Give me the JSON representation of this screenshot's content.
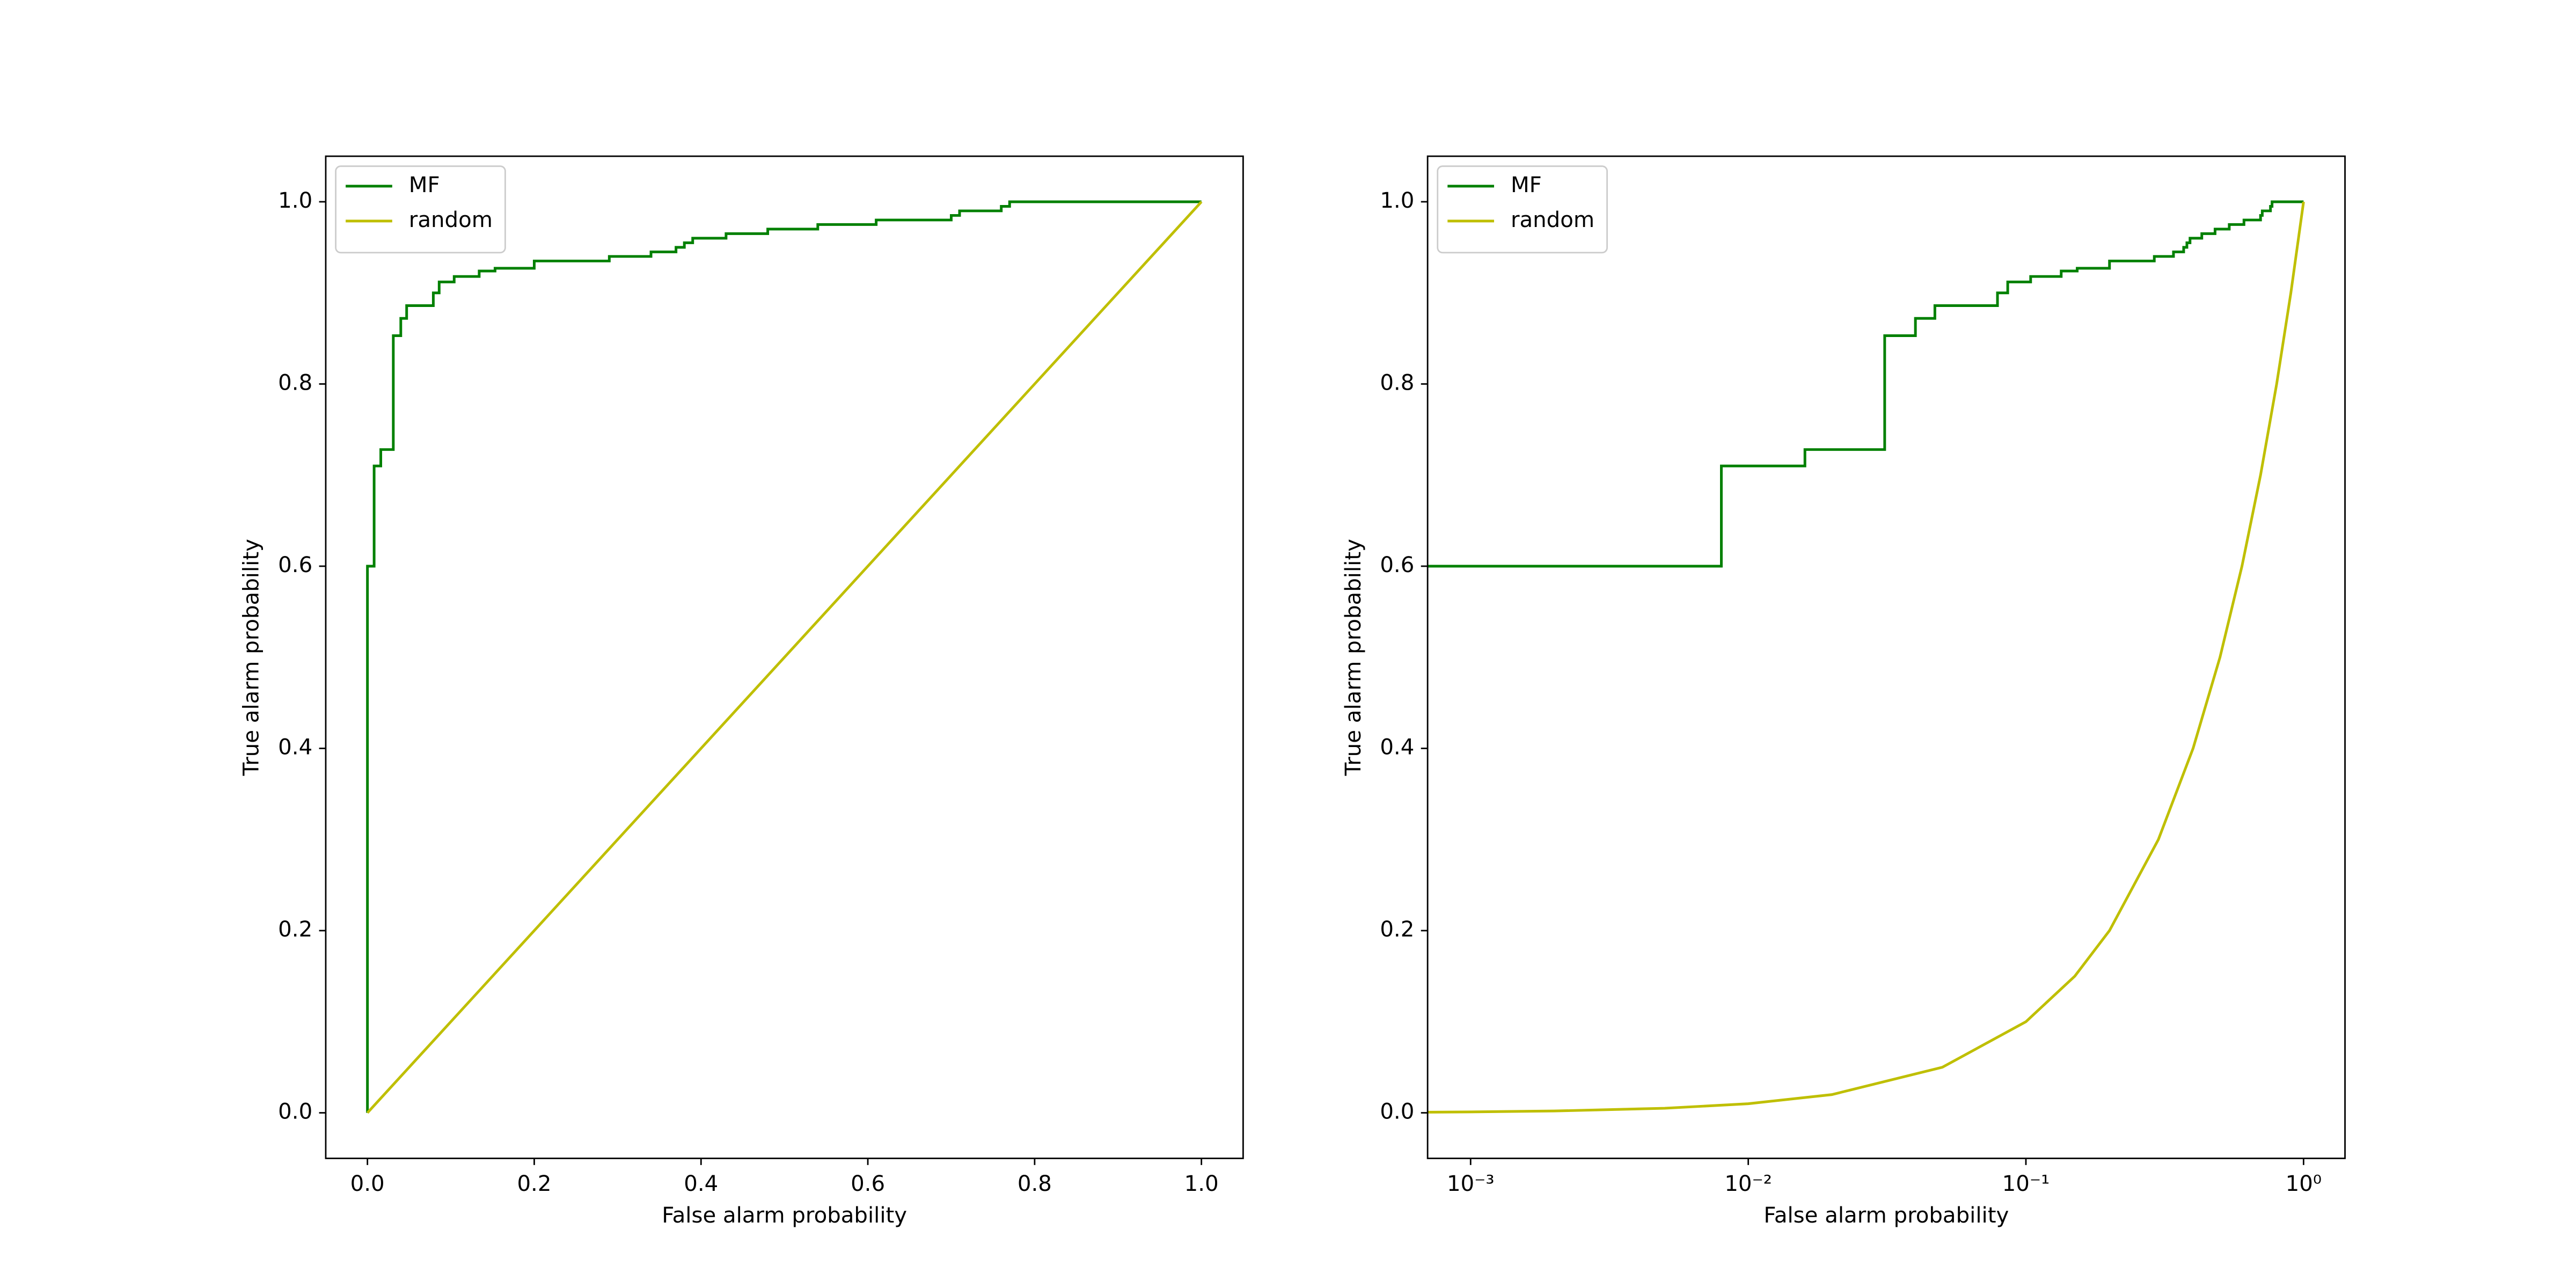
{
  "chart_data": [
    {
      "type": "line",
      "xlabel": "False alarm probability",
      "ylabel": "True alarm probability",
      "xscale": "linear",
      "xlim": [
        -0.05,
        1.05
      ],
      "ylim": [
        -0.05,
        1.05
      ],
      "xticks": [
        {
          "value": 0,
          "label": "0.0"
        },
        {
          "value": 0.2,
          "label": "0.2"
        },
        {
          "value": 0.4,
          "label": "0.4"
        },
        {
          "value": 0.6,
          "label": "0.6"
        },
        {
          "value": 0.8,
          "label": "0.8"
        },
        {
          "value": 1,
          "label": "1.0"
        }
      ],
      "yticks": [
        {
          "value": 0,
          "label": "0.0"
        },
        {
          "value": 0.2,
          "label": "0.2"
        },
        {
          "value": 0.4,
          "label": "0.4"
        },
        {
          "value": 0.6,
          "label": "0.6"
        },
        {
          "value": 0.8,
          "label": "0.8"
        },
        {
          "value": 1,
          "label": "1.0"
        }
      ],
      "legend": "upper left",
      "series": [
        {
          "name": "MF",
          "color": "#008000",
          "x": [
            0,
            0,
            0.008,
            0.008,
            0.016,
            0.016,
            0.031,
            0.031,
            0.04,
            0.04,
            0.047,
            0.047,
            0.079,
            0.079,
            0.086,
            0.086,
            0.104,
            0.104,
            0.134,
            0.134,
            0.153,
            0.153,
            0.2,
            0.2,
            0.29,
            0.29,
            0.34,
            0.34,
            0.37,
            0.37,
            0.38,
            0.38,
            0.39,
            0.39,
            0.43,
            0.43,
            0.48,
            0.48,
            0.54,
            0.54,
            0.61,
            0.61,
            0.7,
            0.7,
            0.71,
            0.71,
            0.76,
            0.76,
            0.77,
            0.77,
            1
          ],
          "values": [
            0,
            0.6,
            0.6,
            0.71,
            0.71,
            0.728,
            0.728,
            0.853,
            0.853,
            0.872,
            0.872,
            0.886,
            0.886,
            0.9,
            0.9,
            0.912,
            0.912,
            0.918,
            0.918,
            0.924,
            0.924,
            0.927,
            0.927,
            0.935,
            0.935,
            0.94,
            0.94,
            0.945,
            0.945,
            0.95,
            0.95,
            0.955,
            0.955,
            0.96,
            0.96,
            0.965,
            0.965,
            0.97,
            0.97,
            0.975,
            0.975,
            0.98,
            0.98,
            0.985,
            0.985,
            0.99,
            0.99,
            0.995,
            0.995,
            1,
            1
          ]
        },
        {
          "name": "random",
          "color": "#bfbf00",
          "x": [
            0,
            1
          ],
          "values": [
            0,
            1
          ]
        }
      ]
    },
    {
      "type": "line",
      "xlabel": "False alarm probability",
      "ylabel": "True alarm probability",
      "xscale": "log",
      "xlim": [
        0.0007,
        1.41
      ],
      "ylim": [
        -0.05,
        1.05
      ],
      "xticks": [
        {
          "value": 0.001,
          "label": "10⁻³"
        },
        {
          "value": 0.01,
          "label": "10⁻²"
        },
        {
          "value": 0.1,
          "label": "10⁻¹"
        },
        {
          "value": 1,
          "label": "10⁰"
        }
      ],
      "yticks": [
        {
          "value": 0,
          "label": "0.0"
        },
        {
          "value": 0.2,
          "label": "0.2"
        },
        {
          "value": 0.4,
          "label": "0.4"
        },
        {
          "value": 0.6,
          "label": "0.6"
        },
        {
          "value": 0.8,
          "label": "0.8"
        },
        {
          "value": 1,
          "label": "1.0"
        }
      ],
      "legend": "upper left",
      "series": [
        {
          "name": "MF",
          "color": "#008000",
          "x": [
            0.0007,
            0.008,
            0.008,
            0.016,
            0.016,
            0.031,
            0.031,
            0.04,
            0.04,
            0.047,
            0.047,
            0.079,
            0.079,
            0.086,
            0.086,
            0.104,
            0.104,
            0.134,
            0.134,
            0.153,
            0.153,
            0.2,
            0.2,
            0.29,
            0.29,
            0.34,
            0.34,
            0.37,
            0.37,
            0.38,
            0.38,
            0.39,
            0.39,
            0.43,
            0.43,
            0.48,
            0.48,
            0.54,
            0.54,
            0.61,
            0.61,
            0.7,
            0.7,
            0.71,
            0.71,
            0.76,
            0.76,
            0.77,
            0.77,
            1
          ],
          "values": [
            0.6,
            0.6,
            0.71,
            0.71,
            0.728,
            0.728,
            0.853,
            0.853,
            0.872,
            0.872,
            0.886,
            0.886,
            0.9,
            0.9,
            0.912,
            0.912,
            0.918,
            0.918,
            0.924,
            0.924,
            0.927,
            0.927,
            0.935,
            0.935,
            0.94,
            0.94,
            0.945,
            0.945,
            0.95,
            0.95,
            0.955,
            0.955,
            0.96,
            0.96,
            0.965,
            0.965,
            0.97,
            0.97,
            0.975,
            0.975,
            0.98,
            0.98,
            0.985,
            0.985,
            0.99,
            0.99,
            0.995,
            0.995,
            1,
            1
          ]
        },
        {
          "name": "random",
          "color": "#bfbf00",
          "x": [
            0.0007,
            0.001,
            0.002,
            0.005,
            0.01,
            0.02,
            0.05,
            0.1,
            0.15,
            0.2,
            0.3,
            0.4,
            0.5,
            0.6,
            0.7,
            0.8,
            0.9,
            1
          ],
          "values": [
            0.0007,
            0.001,
            0.002,
            0.005,
            0.01,
            0.02,
            0.05,
            0.1,
            0.15,
            0.2,
            0.3,
            0.4,
            0.5,
            0.6,
            0.7,
            0.8,
            0.9,
            1
          ]
        }
      ]
    }
  ]
}
